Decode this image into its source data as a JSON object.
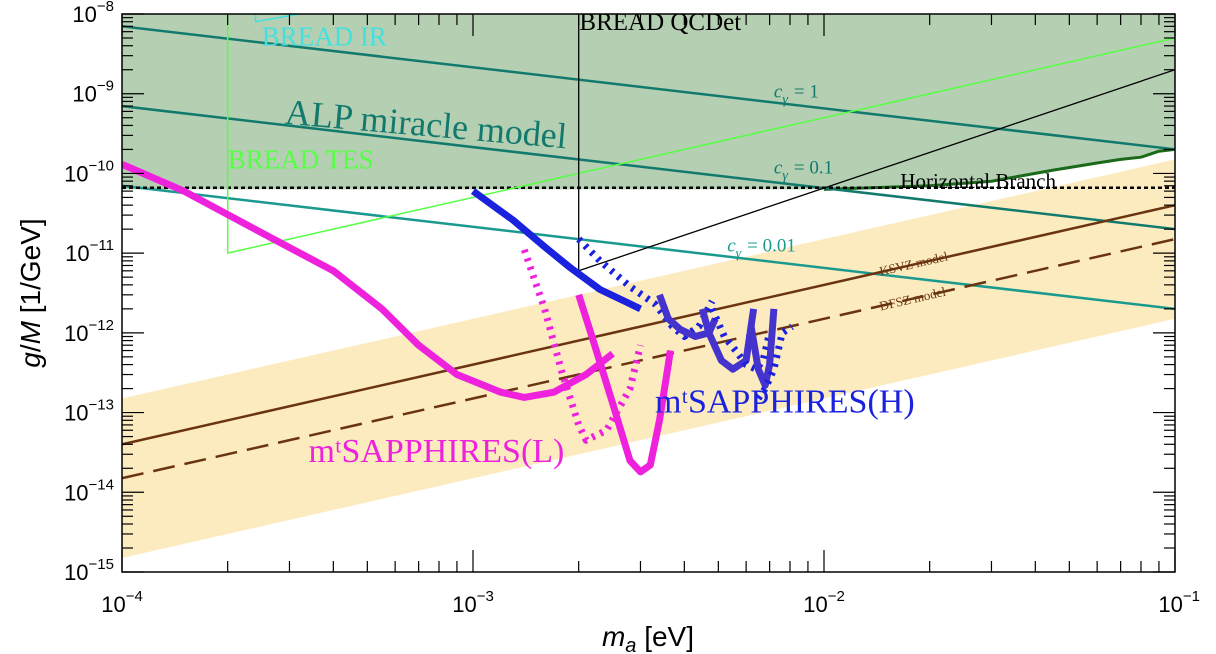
{
  "chart_data": {
    "type": "line",
    "xlabel": "m_a [eV]",
    "ylabel": "g/M [1/GeV]",
    "xscale": "log",
    "yscale": "log",
    "xlim": [
      0.0001,
      0.1
    ],
    "ylim": [
      1e-15,
      1e-08
    ],
    "x_ticks": [
      {
        "base": "10",
        "exp": "−4"
      },
      {
        "base": "10",
        "exp": "−3"
      },
      {
        "base": "10",
        "exp": "−2"
      },
      {
        "base": "10",
        "exp": "−1"
      }
    ],
    "y_ticks": [
      {
        "base": "10",
        "exp": "−15"
      },
      {
        "base": "10",
        "exp": "−14"
      },
      {
        "base": "10",
        "exp": "−13"
      },
      {
        "base": "10",
        "exp": "−12"
      },
      {
        "base": "10",
        "exp": "−11"
      },
      {
        "base": "10",
        "exp": "−10"
      },
      {
        "base": "10",
        "exp": "−9"
      },
      {
        "base": "10",
        "exp": "−8"
      }
    ],
    "regions": [
      {
        "name": "excluded region",
        "color": "#b5cfb3",
        "edge_color": "#1a6a1a",
        "lower_edge": [
          [
            0.0001,
            6.3e-11
          ],
          [
            0.01,
            6.3e-11
          ],
          [
            0.02,
            7e-11
          ],
          [
            0.03,
            8e-11
          ],
          [
            0.045,
            1.1e-10
          ],
          [
            0.06,
            1.35e-10
          ],
          [
            0.07,
            1.5e-10
          ],
          [
            0.08,
            1.6e-10
          ],
          [
            0.09,
            1.9e-10
          ],
          [
            0.1,
            2e-10
          ]
        ]
      },
      {
        "name": "QCD axion band",
        "color": "#fdebc0",
        "lower": [
          [
            0.0001,
            1.5e-15
          ],
          [
            0.1,
            1.5e-12
          ]
        ],
        "upper": [
          [
            0.0001,
            1.5e-13
          ],
          [
            0.1,
            1.5e-10
          ]
        ]
      }
    ],
    "series": [
      {
        "color": "#117a6d",
        "width": 2.5,
        "dash": "",
        "points": [
          [
            0.0001,
            7e-09
          ],
          [
            0.1,
            2e-10
          ]
        ]
      },
      {
        "color": "#117a6d",
        "width": 2.5,
        "dash": "",
        "points": [
          [
            0.0001,
            7e-10
          ],
          [
            0.1,
            2e-11
          ]
        ]
      },
      {
        "color": "#1a9a8f",
        "width": 2.5,
        "dash": "",
        "points": [
          [
            0.0001,
            7e-11
          ],
          [
            0.1,
            2e-12
          ]
        ]
      },
      {
        "color": "#000000",
        "width": 2.5,
        "dash": "4,3",
        "points": [
          [
            0.0001,
            6.6e-11
          ],
          [
            0.1,
            6.6e-11
          ]
        ]
      },
      {
        "color": "#6b3410",
        "width": 2.5,
        "dash": "",
        "points": [
          [
            0.0001,
            4e-14
          ],
          [
            0.1,
            4e-11
          ]
        ]
      },
      {
        "color": "#6b3410",
        "width": 2.5,
        "dash": "22,10",
        "points": [
          [
            0.0001,
            1.5e-14
          ],
          [
            0.1,
            1.5e-11
          ]
        ]
      },
      {
        "color": "#55ff44",
        "width": 1.5,
        "dash": "",
        "points": [
          [
            0.0002,
            1e-08
          ],
          [
            0.0002,
            1e-11
          ],
          [
            0.1,
            5e-09
          ]
        ]
      },
      {
        "color": "#44e0e0",
        "width": 1.5,
        "dash": "",
        "points": [
          [
            0.00024,
            1e-08
          ],
          [
            0.00024,
            8e-09
          ],
          [
            0.00032,
            1e-08
          ]
        ]
      },
      {
        "color": "#000000",
        "width": 1.3,
        "dash": "",
        "points": [
          [
            0.002,
            1e-08
          ],
          [
            0.002,
            6e-12
          ],
          [
            0.1,
            2e-09
          ]
        ]
      },
      {
        "name": "mᵗSAPPHIRES(L)",
        "color": "#ee22dd",
        "width": 7,
        "dash": "",
        "points": [
          [
            0.0001,
            1.3e-10
          ],
          [
            0.00015,
            6e-11
          ],
          [
            0.00025,
            1.8e-11
          ],
          [
            0.0004,
            6e-12
          ],
          [
            0.00055,
            2e-12
          ],
          [
            0.0007,
            7e-13
          ],
          [
            0.0009,
            3e-13
          ],
          [
            0.0012,
            1.8e-13
          ],
          [
            0.0014,
            1.55e-13
          ],
          [
            0.0017,
            1.8e-13
          ],
          [
            0.0021,
            3e-13
          ],
          [
            0.0025,
            5.5e-13
          ]
        ]
      },
      {
        "color": "#ee22dd",
        "width": 7,
        "dash": "3,6",
        "points": [
          [
            0.0014,
            1.1e-11
          ],
          [
            0.0016,
            2e-12
          ],
          [
            0.0018,
            3e-13
          ],
          [
            0.002,
            7e-14
          ],
          [
            0.0021,
            4.5e-14
          ],
          [
            0.0024,
            6e-14
          ],
          [
            0.0028,
            2e-13
          ],
          [
            0.003,
            7e-13
          ]
        ]
      },
      {
        "color": "#ee22dd",
        "width": 7,
        "dash": "",
        "points": [
          [
            0.002,
            3e-12
          ],
          [
            0.0022,
            8e-13
          ],
          [
            0.0025,
            1.3e-13
          ],
          [
            0.0028,
            2.5e-14
          ],
          [
            0.003,
            1.8e-14
          ],
          [
            0.0032,
            2.2e-14
          ],
          [
            0.0034,
            8e-14
          ],
          [
            0.0036,
            4e-13
          ],
          [
            0.00365,
            6e-13
          ]
        ]
      },
      {
        "name": "mᵗSAPPHIRES(H)",
        "color": "#1a22dd",
        "width": 7,
        "dash": "",
        "points": [
          [
            0.001,
            6e-11
          ],
          [
            0.0013,
            2.6e-11
          ],
          [
            0.0016,
            1.2e-11
          ],
          [
            0.0019,
            6.5e-12
          ],
          [
            0.0023,
            3.5e-12
          ],
          [
            0.0027,
            2.5e-12
          ],
          [
            0.003,
            2e-12
          ]
        ]
      },
      {
        "color": "#1a22dd",
        "width": 7,
        "dash": "3,6",
        "points": [
          [
            0.002,
            1.5e-11
          ],
          [
            0.0023,
            8e-12
          ],
          [
            0.0028,
            3.8e-12
          ],
          [
            0.0033,
            2.3e-12
          ],
          [
            0.0037,
            1.2e-12
          ],
          [
            0.004,
            9e-13
          ],
          [
            0.0044,
            1.2e-12
          ],
          [
            0.0048,
            2.5e-12
          ]
        ]
      },
      {
        "color": "#4433cc",
        "width": 7,
        "dash": "",
        "points": [
          [
            0.0034,
            3e-12
          ],
          [
            0.0036,
            1.5e-12
          ],
          [
            0.0039,
            1.1e-12
          ],
          [
            0.0043,
            9e-13
          ],
          [
            0.0047,
            1e-12
          ],
          [
            0.0049,
            1.5e-12
          ]
        ]
      },
      {
        "color": "#4433cc",
        "width": 7,
        "dash": "",
        "points": [
          [
            0.0045,
            2e-12
          ],
          [
            0.0047,
            1e-12
          ],
          [
            0.0051,
            4.5e-13
          ],
          [
            0.0055,
            3.5e-13
          ],
          [
            0.006,
            4.5e-13
          ],
          [
            0.0063,
            2e-12
          ]
        ]
      },
      {
        "color": "#1a22dd",
        "width": 7,
        "dash": "3,6",
        "points": [
          [
            0.0048,
            2e-12
          ],
          [
            0.0052,
            9e-13
          ],
          [
            0.0056,
            6e-13
          ],
          [
            0.006,
            4e-13
          ],
          [
            0.0064,
            3.5e-13
          ],
          [
            0.0067,
            4.5e-13
          ],
          [
            0.007,
            1e-12
          ]
        ]
      },
      {
        "color": "#4433cc",
        "width": 7,
        "dash": "",
        "points": [
          [
            0.0062,
            1.2e-12
          ],
          [
            0.0065,
            3.5e-13
          ],
          [
            0.0068,
            2.2e-13
          ],
          [
            0.007,
            4e-13
          ],
          [
            0.0072,
            2e-12
          ]
        ]
      },
      {
        "color": "#1a22dd",
        "width": 7,
        "dash": "3,6",
        "points": [
          [
            0.0065,
            1.5e-13
          ],
          [
            0.0068,
            2e-13
          ],
          [
            0.0072,
            3.5e-13
          ],
          [
            0.0076,
            1e-12
          ],
          [
            0.0081,
            1.2e-12
          ]
        ]
      }
    ],
    "annotations": [
      {
        "name": "annotation-bread-ir",
        "text": "BREAD IR",
        "x": 0.00025,
        "y": 4e-09,
        "color": "#44e0e0",
        "size": 27
      },
      {
        "name": "annotation-bread-qcdet",
        "text": "BREAD QCDet",
        "x": 0.00201,
        "y": 6.3e-09,
        "color": "#000000",
        "size": 25
      },
      {
        "name": "annotation-alp-miracle",
        "text": "ALP miracle model",
        "x": 0.00029,
        "y": 4.2e-10,
        "color": "#117a6d",
        "size": 36,
        "rotate": 5
      },
      {
        "name": "annotation-bread-tes",
        "text": "BREAD TES",
        "x": 0.0002,
        "y": 1.15e-10,
        "color": "#55ff44",
        "size": 27
      },
      {
        "name": "annotation-horizontal-branch",
        "text": "Horizontal Branch",
        "x": 0.0165,
        "y": 6.6e-11,
        "color": "#000000",
        "size": 21
      },
      {
        "name": "annotation-c-gamma-1",
        "text": "c",
        "sub": "γ",
        "rest": "= 1",
        "x": 0.0072,
        "y": 9e-10,
        "color": "#117a6d",
        "size": 19
      },
      {
        "name": "annotation-c-gamma-01",
        "text": "c",
        "sub": "γ",
        "rest": "= 0.1",
        "x": 0.0072,
        "y": 1e-10,
        "color": "#117a6d",
        "size": 19
      },
      {
        "name": "annotation-c-gamma-001",
        "text": "c",
        "sub": "γ",
        "rest": "= 0.01",
        "x": 0.0053,
        "y": 1.05e-11,
        "color": "#1a9a8f",
        "size": 19
      },
      {
        "name": "annotation-ksvz",
        "text": "KSVZ model",
        "x": 0.0145,
        "y": 5.2e-12,
        "color": "#6b3410",
        "size": 13,
        "rotate": -13
      },
      {
        "name": "annotation-dfsz",
        "text": "DFSZ model",
        "x": 0.0145,
        "y": 1.9e-12,
        "color": "#6b3410",
        "size": 13,
        "rotate": -13
      },
      {
        "name": "annotation-sapphires-l",
        "text": "mᵗSAPPHIRES(L)",
        "x": 0.00034,
        "y": 2.4e-14,
        "color": "#ee22dd",
        "size": 34
      },
      {
        "name": "annotation-sapphires-h",
        "text": "mᵗSAPPHIRES(H)",
        "x": 0.0033,
        "y": 1e-13,
        "color": "#1a22dd",
        "size": 34
      }
    ]
  }
}
